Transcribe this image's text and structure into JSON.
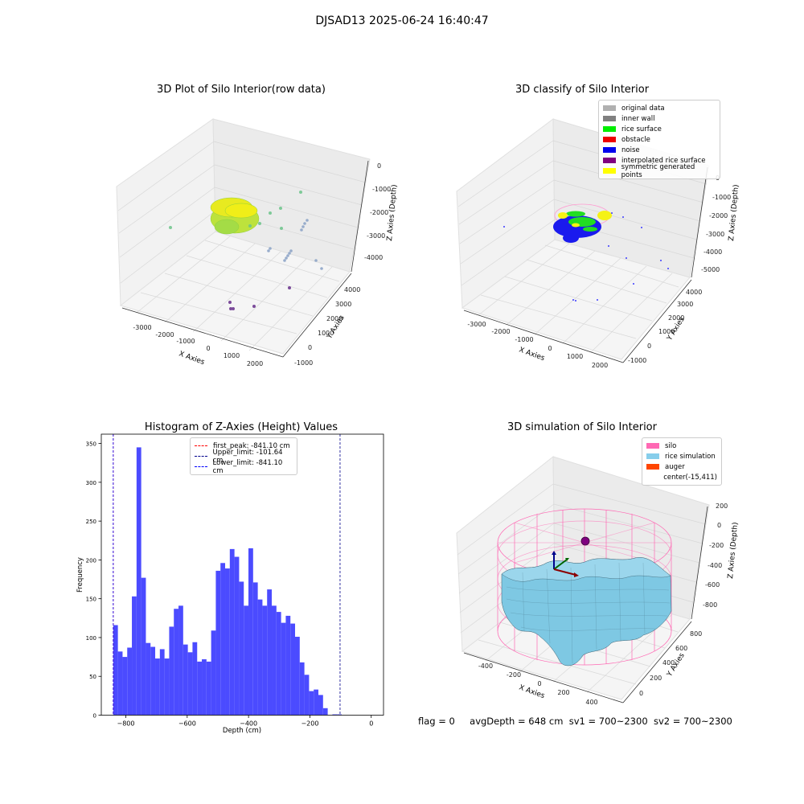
{
  "suptitle": "DJSAD13 2025-06-24 16:40:47",
  "footer": {
    "flag": "flag = 0",
    "avg": "avgDepth = 648 cm",
    "sv1": "sv1 = 700~2300",
    "sv2": "sv2 = 700~2300"
  },
  "chart_data": [
    {
      "type": "scatter",
      "projection": "3d",
      "title": "3D Plot of Silo Interior(row data)",
      "xlabel": "X Axies",
      "ylabel": "Y Axies",
      "zlabel": "Z Axies (Depth)",
      "x_ticks": [
        "-3000",
        "-2000",
        "-1000",
        "0",
        "1000",
        "2000"
      ],
      "y_ticks": [
        "-1000",
        "0",
        "1000",
        "2000",
        "3000",
        "4000"
      ],
      "z_ticks": [
        "0",
        "-1000",
        "-2000",
        "-3000",
        "-4000"
      ],
      "colormap": "viridis"
    },
    {
      "type": "scatter",
      "projection": "3d",
      "title": "3D classify of Silo Interior",
      "xlabel": "X Axies",
      "ylabel": "Y Axies",
      "zlabel": "Z Axies (Depth)",
      "x_ticks": [
        "-3000",
        "-2000",
        "-1000",
        "0",
        "1000",
        "2000"
      ],
      "y_ticks": [
        "-1000",
        "0",
        "1000",
        "2000",
        "3000",
        "4000"
      ],
      "z_ticks": [
        "0",
        "-1000",
        "-2000",
        "-3000",
        "-4000",
        "-5000"
      ],
      "legend": [
        {
          "label": "original data",
          "color": "#b0b0b0"
        },
        {
          "label": "inner wall",
          "color": "#808080"
        },
        {
          "label": "rice surface",
          "color": "#00ee00"
        },
        {
          "label": "obstacle",
          "color": "#ee0000"
        },
        {
          "label": "noise",
          "color": "#0000ee"
        },
        {
          "label": "interpolated rice surface",
          "color": "#800080"
        },
        {
          "label": "symmetric generated points",
          "color": "#ffff00"
        }
      ]
    },
    {
      "type": "bar",
      "title": "Histogram of Z-Axies (Height) Values",
      "xlabel": "Depth (cm)",
      "ylabel": "Frequency",
      "bar_color": "#4b4bff",
      "xlim": [
        -880,
        40
      ],
      "ylim": [
        0,
        362
      ],
      "x_ticks": [
        -800,
        -600,
        -400,
        -200,
        0
      ],
      "y_ticks": [
        0,
        50,
        100,
        150,
        200,
        250,
        300,
        350
      ],
      "bin_start": -841.1,
      "bin_width": 15.2,
      "values": [
        116,
        82,
        75,
        87,
        153,
        345,
        177,
        93,
        88,
        73,
        85,
        73,
        114,
        137,
        141,
        91,
        81,
        94,
        69,
        72,
        69,
        109,
        186,
        196,
        189,
        214,
        204,
        172,
        141,
        215,
        171,
        149,
        141,
        162,
        141,
        133,
        119,
        128,
        118,
        101,
        68,
        52,
        31,
        33,
        26,
        9,
        0,
        1,
        1
      ],
      "vlines": [
        {
          "label": "first_peak: -841.10 cm",
          "x": -841.1,
          "color": "#ff0000"
        },
        {
          "label": "Upper_limit: -101.64 cm",
          "x": -101.64,
          "color": "#00008b"
        },
        {
          "label": "Lower_limit: -841.10 cm",
          "x": -841.1,
          "color": "#0000ff"
        }
      ]
    },
    {
      "type": "area",
      "projection": "3d",
      "title": "3D simulation of Silo Interior",
      "xlabel": "X Axies",
      "ylabel": "Y Axies",
      "zlabel": "Z Axies (Depth)",
      "x_ticks": [
        "-400",
        "-200",
        "0",
        "200",
        "400"
      ],
      "y_ticks": [
        "0",
        "200",
        "400",
        "600",
        "800"
      ],
      "z_ticks": [
        "200",
        "0",
        "-200",
        "-400",
        "-600",
        "-800"
      ],
      "legend": [
        {
          "label": "silo",
          "color": "#ff69b4"
        },
        {
          "label": "rice simulation",
          "color": "#87ceeb"
        },
        {
          "label": "auger",
          "color": "#ff4500"
        },
        {
          "label": "center(-15,411)",
          "color": ""
        }
      ]
    }
  ]
}
